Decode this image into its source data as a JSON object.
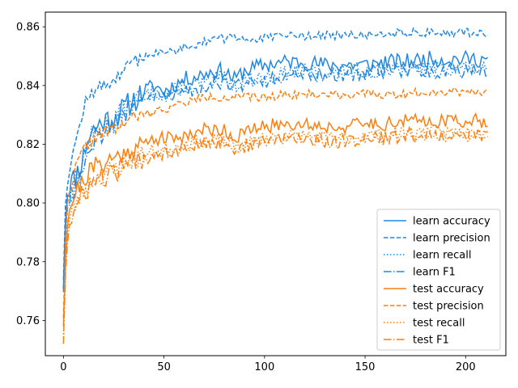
{
  "chart_data": {
    "type": "line",
    "title": "",
    "xlabel": "",
    "ylabel": "",
    "xlim": [
      -9,
      220
    ],
    "ylim": [
      0.748,
      0.865
    ],
    "x_ticks": [
      0,
      50,
      100,
      150,
      200
    ],
    "y_ticks": [
      0.76,
      0.78,
      0.8,
      0.82,
      0.84,
      0.86
    ],
    "x_tick_labels": [
      "0",
      "50",
      "100",
      "150",
      "200"
    ],
    "y_tick_labels": [
      "0.76",
      "0.78",
      "0.80",
      "0.82",
      "0.84",
      "0.86"
    ],
    "grid": false,
    "legend_position": "lower-right",
    "n_points": 212,
    "colors": {
      "learn": "#1f88e5",
      "test": "#ff7f0e"
    },
    "series": [
      {
        "name": "learn accuracy",
        "color": "#1f88e5",
        "dash": "solid",
        "anchors": [
          [
            0,
            0.773
          ],
          [
            1,
            0.795
          ],
          [
            2,
            0.804
          ],
          [
            3,
            0.806
          ],
          [
            5,
            0.808
          ],
          [
            8,
            0.812
          ],
          [
            10,
            0.816
          ],
          [
            12,
            0.822
          ],
          [
            15,
            0.825
          ],
          [
            20,
            0.828
          ],
          [
            25,
            0.829
          ],
          [
            30,
            0.832
          ],
          [
            35,
            0.835
          ],
          [
            40,
            0.838
          ],
          [
            45,
            0.84
          ],
          [
            50,
            0.838
          ],
          [
            55,
            0.84
          ],
          [
            60,
            0.842
          ],
          [
            65,
            0.843
          ],
          [
            70,
            0.844
          ],
          [
            75,
            0.845
          ],
          [
            80,
            0.845
          ],
          [
            85,
            0.842
          ],
          [
            90,
            0.845
          ],
          [
            100,
            0.847
          ],
          [
            110,
            0.848
          ],
          [
            120,
            0.848
          ],
          [
            130,
            0.847
          ],
          [
            140,
            0.847
          ],
          [
            150,
            0.847
          ],
          [
            160,
            0.848
          ],
          [
            170,
            0.848
          ],
          [
            180,
            0.849
          ],
          [
            190,
            0.849
          ],
          [
            200,
            0.849
          ],
          [
            211,
            0.849
          ]
        ],
        "noise": 0.0028,
        "seed": 11
      },
      {
        "name": "learn precision",
        "color": "#1f88e5",
        "dash": "dashed",
        "anchors": [
          [
            0,
            0.775
          ],
          [
            1,
            0.8
          ],
          [
            2,
            0.808
          ],
          [
            3,
            0.812
          ],
          [
            5,
            0.818
          ],
          [
            8,
            0.826
          ],
          [
            10,
            0.832
          ],
          [
            12,
            0.836
          ],
          [
            15,
            0.838
          ],
          [
            20,
            0.84
          ],
          [
            25,
            0.842
          ],
          [
            30,
            0.845
          ],
          [
            35,
            0.848
          ],
          [
            40,
            0.85
          ],
          [
            45,
            0.851
          ],
          [
            50,
            0.851
          ],
          [
            55,
            0.852
          ],
          [
            60,
            0.853
          ],
          [
            65,
            0.854
          ],
          [
            70,
            0.855
          ],
          [
            75,
            0.856
          ],
          [
            80,
            0.856
          ],
          [
            90,
            0.856
          ],
          [
            100,
            0.856
          ],
          [
            110,
            0.857
          ],
          [
            120,
            0.857
          ],
          [
            130,
            0.857
          ],
          [
            140,
            0.857
          ],
          [
            150,
            0.857
          ],
          [
            160,
            0.858
          ],
          [
            170,
            0.858
          ],
          [
            180,
            0.858
          ],
          [
            190,
            0.858
          ],
          [
            200,
            0.858
          ],
          [
            211,
            0.858
          ]
        ],
        "noise": 0.0015,
        "seed": 12
      },
      {
        "name": "learn recall",
        "color": "#1f88e5",
        "dash": "dotted",
        "anchors": [
          [
            0,
            0.773
          ],
          [
            1,
            0.792
          ],
          [
            2,
            0.8
          ],
          [
            3,
            0.803
          ],
          [
            5,
            0.806
          ],
          [
            8,
            0.81
          ],
          [
            10,
            0.815
          ],
          [
            12,
            0.82
          ],
          [
            15,
            0.823
          ],
          [
            20,
            0.826
          ],
          [
            25,
            0.828
          ],
          [
            30,
            0.831
          ],
          [
            35,
            0.834
          ],
          [
            40,
            0.836
          ],
          [
            45,
            0.838
          ],
          [
            50,
            0.837
          ],
          [
            55,
            0.838
          ],
          [
            60,
            0.84
          ],
          [
            65,
            0.84
          ],
          [
            70,
            0.841
          ],
          [
            75,
            0.842
          ],
          [
            80,
            0.843
          ],
          [
            85,
            0.84
          ],
          [
            90,
            0.842
          ],
          [
            100,
            0.843
          ],
          [
            110,
            0.844
          ],
          [
            120,
            0.845
          ],
          [
            130,
            0.844
          ],
          [
            140,
            0.845
          ],
          [
            150,
            0.845
          ],
          [
            160,
            0.845
          ],
          [
            170,
            0.846
          ],
          [
            180,
            0.846
          ],
          [
            190,
            0.846
          ],
          [
            200,
            0.846
          ],
          [
            211,
            0.845
          ]
        ],
        "noise": 0.0027,
        "seed": 13
      },
      {
        "name": "learn F1",
        "color": "#1f88e5",
        "dash": "dashdot",
        "anchors": [
          [
            0,
            0.772
          ],
          [
            1,
            0.791
          ],
          [
            2,
            0.799
          ],
          [
            3,
            0.802
          ],
          [
            5,
            0.805
          ],
          [
            8,
            0.809
          ],
          [
            10,
            0.814
          ],
          [
            12,
            0.819
          ],
          [
            15,
            0.822
          ],
          [
            20,
            0.825
          ],
          [
            25,
            0.827
          ],
          [
            30,
            0.83
          ],
          [
            35,
            0.833
          ],
          [
            40,
            0.835
          ],
          [
            45,
            0.837
          ],
          [
            50,
            0.836
          ],
          [
            55,
            0.837
          ],
          [
            60,
            0.839
          ],
          [
            65,
            0.839
          ],
          [
            70,
            0.84
          ],
          [
            75,
            0.841
          ],
          [
            80,
            0.842
          ],
          [
            85,
            0.839
          ],
          [
            90,
            0.841
          ],
          [
            100,
            0.842
          ],
          [
            110,
            0.843
          ],
          [
            120,
            0.844
          ],
          [
            130,
            0.843
          ],
          [
            140,
            0.844
          ],
          [
            150,
            0.844
          ],
          [
            160,
            0.845
          ],
          [
            170,
            0.845
          ],
          [
            180,
            0.845
          ],
          [
            190,
            0.845
          ],
          [
            200,
            0.845
          ],
          [
            211,
            0.845
          ]
        ],
        "noise": 0.0028,
        "seed": 14
      },
      {
        "name": "test accuracy",
        "color": "#ff7f0e",
        "dash": "solid",
        "anchors": [
          [
            0,
            0.76
          ],
          [
            1,
            0.782
          ],
          [
            2,
            0.794
          ],
          [
            3,
            0.798
          ],
          [
            5,
            0.802
          ],
          [
            8,
            0.806
          ],
          [
            10,
            0.808
          ],
          [
            12,
            0.81
          ],
          [
            15,
            0.812
          ],
          [
            20,
            0.814
          ],
          [
            25,
            0.815
          ],
          [
            30,
            0.817
          ],
          [
            35,
            0.819
          ],
          [
            40,
            0.82
          ],
          [
            45,
            0.822
          ],
          [
            50,
            0.822
          ],
          [
            55,
            0.822
          ],
          [
            60,
            0.823
          ],
          [
            65,
            0.824
          ],
          [
            70,
            0.825
          ],
          [
            75,
            0.825
          ],
          [
            80,
            0.825
          ],
          [
            85,
            0.822
          ],
          [
            90,
            0.824
          ],
          [
            100,
            0.826
          ],
          [
            110,
            0.827
          ],
          [
            120,
            0.827
          ],
          [
            130,
            0.826
          ],
          [
            140,
            0.826
          ],
          [
            150,
            0.827
          ],
          [
            160,
            0.827
          ],
          [
            170,
            0.828
          ],
          [
            180,
            0.828
          ],
          [
            190,
            0.828
          ],
          [
            200,
            0.828
          ],
          [
            211,
            0.828
          ]
        ],
        "noise": 0.0024,
        "seed": 21
      },
      {
        "name": "test precision",
        "color": "#ff7f0e",
        "dash": "dashed",
        "anchors": [
          [
            0,
            0.762
          ],
          [
            1,
            0.786
          ],
          [
            2,
            0.798
          ],
          [
            3,
            0.804
          ],
          [
            5,
            0.81
          ],
          [
            8,
            0.815
          ],
          [
            10,
            0.818
          ],
          [
            12,
            0.82
          ],
          [
            15,
            0.822
          ],
          [
            20,
            0.824
          ],
          [
            25,
            0.825
          ],
          [
            30,
            0.827
          ],
          [
            35,
            0.829
          ],
          [
            40,
            0.83
          ],
          [
            45,
            0.831
          ],
          [
            50,
            0.832
          ],
          [
            55,
            0.833
          ],
          [
            60,
            0.834
          ],
          [
            65,
            0.835
          ],
          [
            70,
            0.836
          ],
          [
            75,
            0.836
          ],
          [
            80,
            0.836
          ],
          [
            90,
            0.836
          ],
          [
            100,
            0.836
          ],
          [
            110,
            0.837
          ],
          [
            120,
            0.837
          ],
          [
            130,
            0.837
          ],
          [
            140,
            0.837
          ],
          [
            150,
            0.837
          ],
          [
            160,
            0.837
          ],
          [
            170,
            0.837
          ],
          [
            180,
            0.838
          ],
          [
            190,
            0.838
          ],
          [
            200,
            0.838
          ],
          [
            211,
            0.838
          ]
        ],
        "noise": 0.0015,
        "seed": 22
      },
      {
        "name": "test recall",
        "color": "#ff7f0e",
        "dash": "dotted",
        "anchors": [
          [
            0,
            0.756
          ],
          [
            1,
            0.778
          ],
          [
            2,
            0.79
          ],
          [
            3,
            0.794
          ],
          [
            5,
            0.798
          ],
          [
            8,
            0.802
          ],
          [
            10,
            0.804
          ],
          [
            12,
            0.806
          ],
          [
            15,
            0.808
          ],
          [
            20,
            0.81
          ],
          [
            25,
            0.811
          ],
          [
            30,
            0.813
          ],
          [
            35,
            0.815
          ],
          [
            40,
            0.816
          ],
          [
            45,
            0.818
          ],
          [
            50,
            0.818
          ],
          [
            55,
            0.819
          ],
          [
            60,
            0.82
          ],
          [
            65,
            0.821
          ],
          [
            70,
            0.821
          ],
          [
            75,
            0.821
          ],
          [
            80,
            0.822
          ],
          [
            85,
            0.819
          ],
          [
            90,
            0.82
          ],
          [
            100,
            0.822
          ],
          [
            110,
            0.823
          ],
          [
            120,
            0.823
          ],
          [
            130,
            0.822
          ],
          [
            140,
            0.822
          ],
          [
            150,
            0.823
          ],
          [
            160,
            0.823
          ],
          [
            170,
            0.824
          ],
          [
            180,
            0.824
          ],
          [
            190,
            0.824
          ],
          [
            200,
            0.824
          ],
          [
            211,
            0.824
          ]
        ],
        "noise": 0.0024,
        "seed": 23
      },
      {
        "name": "test F1",
        "color": "#ff7f0e",
        "dash": "dashdot",
        "anchors": [
          [
            0,
            0.754
          ],
          [
            1,
            0.776
          ],
          [
            2,
            0.788
          ],
          [
            3,
            0.792
          ],
          [
            5,
            0.796
          ],
          [
            8,
            0.8
          ],
          [
            10,
            0.803
          ],
          [
            12,
            0.805
          ],
          [
            15,
            0.807
          ],
          [
            20,
            0.809
          ],
          [
            25,
            0.81
          ],
          [
            30,
            0.812
          ],
          [
            35,
            0.814
          ],
          [
            40,
            0.815
          ],
          [
            45,
            0.817
          ],
          [
            50,
            0.817
          ],
          [
            55,
            0.818
          ],
          [
            60,
            0.819
          ],
          [
            65,
            0.82
          ],
          [
            70,
            0.82
          ],
          [
            75,
            0.82
          ],
          [
            80,
            0.821
          ],
          [
            85,
            0.818
          ],
          [
            90,
            0.819
          ],
          [
            100,
            0.821
          ],
          [
            110,
            0.822
          ],
          [
            120,
            0.822
          ],
          [
            130,
            0.821
          ],
          [
            140,
            0.821
          ],
          [
            150,
            0.822
          ],
          [
            160,
            0.822
          ],
          [
            170,
            0.823
          ],
          [
            180,
            0.823
          ],
          [
            190,
            0.823
          ],
          [
            200,
            0.823
          ],
          [
            211,
            0.823
          ]
        ],
        "noise": 0.0024,
        "seed": 24
      }
    ]
  }
}
